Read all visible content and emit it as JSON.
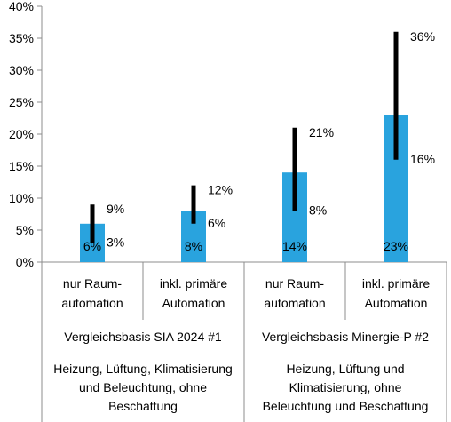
{
  "chart_data": {
    "type": "bar",
    "ylim": [
      0,
      40
    ],
    "yticks": [
      {
        "value": 0,
        "label": "0%"
      },
      {
        "value": 5,
        "label": "5%"
      },
      {
        "value": 10,
        "label": "10%"
      },
      {
        "value": 15,
        "label": "15%"
      },
      {
        "value": 20,
        "label": "20%"
      },
      {
        "value": 25,
        "label": "25%"
      },
      {
        "value": 30,
        "label": "30%"
      },
      {
        "value": 35,
        "label": "35%"
      },
      {
        "value": 40,
        "label": "40%"
      }
    ],
    "categories": [
      {
        "line1": "nur Raum-",
        "line2": "automation"
      },
      {
        "line1": "inkl. primäre",
        "line2": "Automation"
      },
      {
        "line1": "nur Raum-",
        "line2": "automation"
      },
      {
        "line1": "inkl. primäre",
        "line2": "Automation"
      }
    ],
    "values": [
      6,
      8,
      14,
      23
    ],
    "value_labels": [
      "6%",
      "8%",
      "14%",
      "23%"
    ],
    "ranges": [
      {
        "low": 3,
        "high": 9,
        "low_label": "3%",
        "high_label": "9%"
      },
      {
        "low": 6,
        "high": 12,
        "low_label": "6%",
        "high_label": "12%"
      },
      {
        "low": 8,
        "high": 21,
        "low_label": "8%",
        "high_label": "21%"
      },
      {
        "low": 16,
        "high": 36,
        "low_label": "16%",
        "high_label": "36%"
      }
    ],
    "groups": [
      {
        "label": "Vergleichsbasis SIA 2024 #1",
        "note_lines": [
          "Heizung, Lüftung, Klimatisierung",
          "und Beleuchtung, ohne",
          "Beschattung"
        ]
      },
      {
        "label": "Vergleichsbasis Minergie-P #2",
        "note_lines": [
          "Heizung, Lüftung und",
          "Klimatisierung, ohne",
          "Beleuchtung und Beschattung"
        ]
      }
    ],
    "colors": {
      "bar": "#29a3de",
      "range": "#000000",
      "grid": "#8c8c8c"
    }
  }
}
